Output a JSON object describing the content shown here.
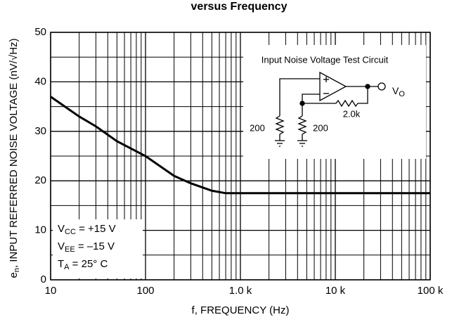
{
  "chart_data": {
    "type": "line",
    "title": "versus Frequency",
    "x_label": "f, FREQUENCY (Hz)",
    "y_label": {
      "main": "e",
      "sub": "n",
      "rest": ", INPUT REFERRED NOISE VOLTAGE (nV/√Hz)"
    },
    "x": [
      10,
      20,
      30,
      50,
      100,
      200,
      300,
      500,
      700,
      1000,
      100000
    ],
    "values": [
      37,
      33,
      31,
      28,
      25,
      21,
      19.5,
      18,
      17.5,
      17.5,
      17.5
    ],
    "color": "#000000",
    "xscale": "log",
    "xlim": [
      10,
      100000
    ],
    "xticks": [
      {
        "value": 10,
        "label": "10"
      },
      {
        "value": 100,
        "label": "100"
      },
      {
        "value": 1000,
        "label": "1.0 k"
      },
      {
        "value": 10000,
        "label": "10 k"
      },
      {
        "value": 100000,
        "label": "100 k"
      }
    ],
    "xminorticks": [
      20,
      30,
      40,
      50,
      60,
      70,
      80,
      90,
      200,
      300,
      400,
      500,
      600,
      700,
      800,
      900,
      2000,
      3000,
      4000,
      5000,
      6000,
      7000,
      8000,
      9000,
      20000,
      30000,
      40000,
      50000,
      60000,
      70000,
      80000,
      90000
    ],
    "ylim": [
      0,
      50
    ],
    "yticks": [
      0,
      10,
      20,
      30,
      40,
      50
    ],
    "yminorticks": [
      5,
      15,
      25,
      35,
      45
    ],
    "grid": true,
    "conditions": [
      {
        "main": "V",
        "sub": "CC",
        "rest": " = +15 V"
      },
      {
        "main": "V",
        "sub": "EE",
        "rest": " = –15 V"
      },
      {
        "main": "T",
        "sub": "A",
        "rest": " = 25° C"
      }
    ],
    "inset": {
      "title": "Input Noise Voltage Test Circuit",
      "r1": "200",
      "r2": "200",
      "rf": "2.0k",
      "out_main": "V",
      "out_sub": "O"
    }
  }
}
